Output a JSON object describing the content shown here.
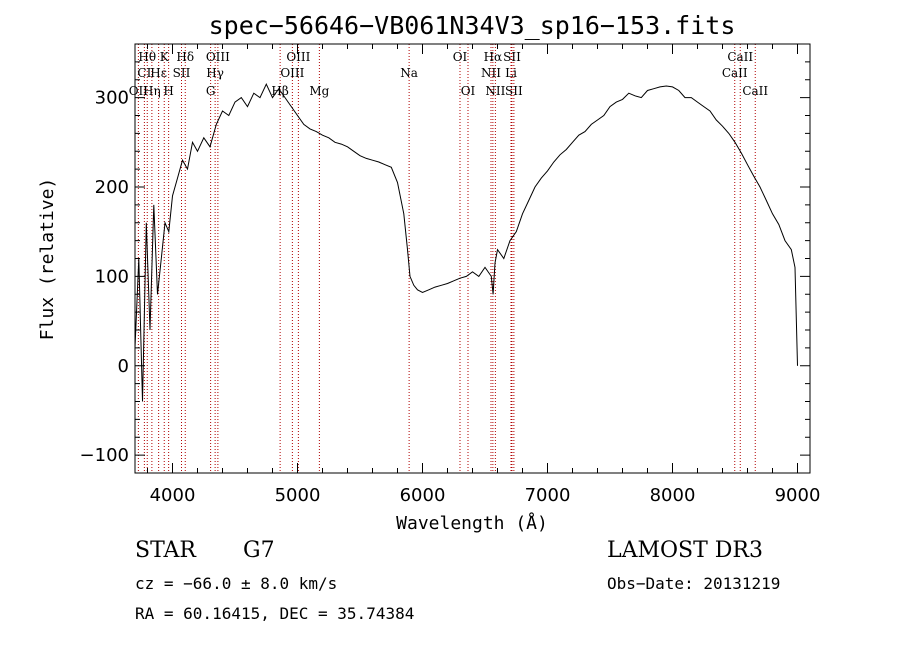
{
  "chart_data": {
    "type": "line",
    "title": "spec−56646−VB061N34V3_sp16−153.fits",
    "xlabel": "Wavelength (Å)",
    "ylabel": "Flux (relative)",
    "xlim": [
      3700,
      9100
    ],
    "ylim": [
      -120,
      360
    ],
    "xticks": [
      4000,
      5000,
      6000,
      7000,
      8000,
      9000
    ],
    "yticks": [
      -100,
      0,
      100,
      200,
      300
    ],
    "series": [
      {
        "name": "spectrum",
        "x": [
          3700,
          3730,
          3760,
          3790,
          3820,
          3850,
          3880,
          3910,
          3940,
          3970,
          4000,
          4040,
          4080,
          4120,
          4160,
          4200,
          4250,
          4300,
          4350,
          4400,
          4450,
          4500,
          4550,
          4600,
          4650,
          4700,
          4750,
          4800,
          4850,
          4900,
          4950,
          5000,
          5050,
          5100,
          5150,
          5200,
          5250,
          5300,
          5350,
          5400,
          5450,
          5500,
          5550,
          5600,
          5650,
          5700,
          5750,
          5800,
          5850,
          5880,
          5900,
          5930,
          5960,
          6000,
          6050,
          6100,
          6150,
          6200,
          6250,
          6300,
          6350,
          6400,
          6450,
          6500,
          6550,
          6565,
          6580,
          6600,
          6650,
          6700,
          6750,
          6800,
          6850,
          6900,
          6950,
          7000,
          7050,
          7100,
          7150,
          7200,
          7250,
          7300,
          7350,
          7400,
          7450,
          7500,
          7550,
          7600,
          7650,
          7700,
          7750,
          7800,
          7850,
          7900,
          7950,
          8000,
          8050,
          8100,
          8150,
          8200,
          8250,
          8300,
          8350,
          8400,
          8450,
          8500,
          8550,
          8600,
          8650,
          8700,
          8750,
          8800,
          8850,
          8900,
          8950,
          8980,
          9000
        ],
        "values": [
          20,
          120,
          -40,
          160,
          40,
          180,
          80,
          120,
          160,
          150,
          190,
          210,
          230,
          220,
          250,
          240,
          255,
          245,
          270,
          285,
          280,
          295,
          300,
          290,
          305,
          300,
          315,
          300,
          310,
          300,
          290,
          280,
          270,
          265,
          262,
          258,
          255,
          250,
          248,
          245,
          240,
          235,
          232,
          230,
          228,
          225,
          222,
          205,
          170,
          130,
          100,
          90,
          85,
          82,
          85,
          88,
          90,
          92,
          95,
          98,
          100,
          105,
          100,
          110,
          100,
          80,
          115,
          130,
          120,
          140,
          150,
          170,
          185,
          200,
          210,
          218,
          228,
          236,
          242,
          250,
          258,
          262,
          270,
          275,
          280,
          290,
          295,
          298,
          305,
          302,
          300,
          308,
          310,
          312,
          313,
          312,
          308,
          300,
          300,
          295,
          290,
          285,
          275,
          268,
          260,
          250,
          238,
          225,
          212,
          200,
          185,
          170,
          158,
          140,
          130,
          110,
          0
        ]
      }
    ],
    "annotations": [
      {
        "label": "Hθ",
        "x": 3798,
        "row": 1
      },
      {
        "label": "CI",
        "x": 3775,
        "row": 2
      },
      {
        "label": "OII",
        "x": 3727,
        "row": 3
      },
      {
        "label": "Hη",
        "x": 3835,
        "row": 3
      },
      {
        "label": "Hε",
        "x": 3889,
        "row": 2
      },
      {
        "label": "K",
        "x": 3934,
        "row": 1
      },
      {
        "label": "H",
        "x": 3969,
        "row": 3
      },
      {
        "label": "SII",
        "x": 4072,
        "row": 2
      },
      {
        "label": "Hδ",
        "x": 4102,
        "row": 1
      },
      {
        "label": "OIII",
        "x": 4363,
        "row": 1
      },
      {
        "label": "Hγ",
        "x": 4341,
        "row": 2
      },
      {
        "label": "G",
        "x": 4305,
        "row": 3
      },
      {
        "label": "OIII",
        "x": 5007,
        "row": 1
      },
      {
        "label": "OIII",
        "x": 4959,
        "row": 2
      },
      {
        "label": "Hβ",
        "x": 4861,
        "row": 3
      },
      {
        "label": "Mg",
        "x": 5175,
        "row": 3
      },
      {
        "label": "Na",
        "x": 5893,
        "row": 2
      },
      {
        "label": "OI",
        "x": 6300,
        "row": 1
      },
      {
        "label": "OI",
        "x": 6364,
        "row": 3
      },
      {
        "label": "Hα",
        "x": 6563,
        "row": 1
      },
      {
        "label": "SII",
        "x": 6716,
        "row": 1
      },
      {
        "label": "NII",
        "x": 6548,
        "row": 2
      },
      {
        "label": "Li",
        "x": 6708,
        "row": 2
      },
      {
        "label": "NII",
        "x": 6583,
        "row": 3
      },
      {
        "label": "SII",
        "x": 6731,
        "row": 3
      },
      {
        "label": "CaII",
        "x": 8542,
        "row": 1
      },
      {
        "label": "CaII",
        "x": 8498,
        "row": 2
      },
      {
        "label": "CaII",
        "x": 8662,
        "row": 3
      }
    ]
  },
  "info": {
    "class": "STAR",
    "subclass": "G7",
    "survey": "LAMOST DR3",
    "cz": "cz = −66.0 ± 8.0 km/s",
    "obs_date": "Obs−Date: 20131219",
    "radec": "RA =  60.16415, DEC =  35.74384"
  }
}
